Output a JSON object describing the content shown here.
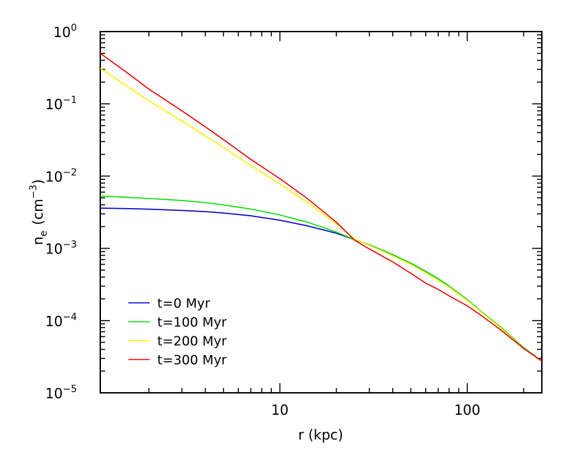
{
  "chart_data": {
    "type": "line",
    "xlabel": "r (kpc)",
    "ylabel_main": "n",
    "ylabel_sub": "e",
    "ylabel_unit": "(cm",
    "ylabel_exp": "−3",
    "ylabel_close": ")",
    "x_scale": "log",
    "y_scale": "log",
    "xlim": [
      1.1,
      250
    ],
    "ylim": [
      1e-05,
      1.0
    ],
    "grid": false,
    "legend_position": "bottom-left",
    "x_ticks": [
      {
        "value": 10,
        "label": "10"
      },
      {
        "value": 100,
        "label": "100"
      }
    ],
    "y_ticks": [
      {
        "value": 1,
        "base": "10",
        "exp": "0"
      },
      {
        "value": 0.1,
        "base": "10",
        "exp": "−1"
      },
      {
        "value": 0.01,
        "base": "10",
        "exp": "−2"
      },
      {
        "value": 0.001,
        "base": "10",
        "exp": "−3"
      },
      {
        "value": 0.0001,
        "base": "10",
        "exp": "−4"
      },
      {
        "value": 1e-05,
        "base": "10",
        "exp": "−5"
      }
    ],
    "series": [
      {
        "name": "t=0 Myr",
        "color": "#0000cc",
        "points": [
          [
            1.1,
            0.0036
          ],
          [
            1.5,
            0.00355
          ],
          [
            2,
            0.00348
          ],
          [
            3,
            0.00335
          ],
          [
            4,
            0.00322
          ],
          [
            5,
            0.00308
          ],
          [
            7,
            0.00282
          ],
          [
            10,
            0.00245
          ],
          [
            14,
            0.00205
          ],
          [
            20,
            0.00162
          ],
          [
            25,
            0.00132
          ],
          [
            30,
            0.00112
          ],
          [
            40,
            0.00082
          ],
          [
            50,
            0.00062
          ],
          [
            60,
            0.00048
          ],
          [
            70,
            0.00038
          ],
          [
            80,
            0.0003
          ],
          [
            100,
            0.000195
          ],
          [
            120,
            0.00013
          ],
          [
            150,
            8.2e-05
          ],
          [
            200,
            4.2e-05
          ],
          [
            250,
            2.75e-05
          ]
        ]
      },
      {
        "name": "t=100 Myr",
        "color": "#00dd00",
        "points": [
          [
            1.1,
            0.0053
          ],
          [
            1.5,
            0.0051
          ],
          [
            2,
            0.0049
          ],
          [
            3,
            0.0046
          ],
          [
            4,
            0.0043
          ],
          [
            5,
            0.004
          ],
          [
            7,
            0.0035
          ],
          [
            10,
            0.0029
          ],
          [
            14,
            0.0023
          ],
          [
            20,
            0.00168
          ],
          [
            25,
            0.00132
          ],
          [
            30,
            0.00112
          ],
          [
            40,
            0.00082
          ],
          [
            50,
            0.00062
          ],
          [
            60,
            0.00048
          ],
          [
            70,
            0.00038
          ],
          [
            80,
            0.0003
          ],
          [
            100,
            0.000195
          ],
          [
            120,
            0.00013
          ],
          [
            150,
            8.2e-05
          ],
          [
            200,
            4.2e-05
          ],
          [
            250,
            2.75e-05
          ]
        ]
      },
      {
        "name": "t=200 Myr",
        "color": "#ffee00",
        "points": [
          [
            1.1,
            0.31
          ],
          [
            1.5,
            0.18
          ],
          [
            2,
            0.11
          ],
          [
            3,
            0.058
          ],
          [
            4,
            0.036
          ],
          [
            5,
            0.025
          ],
          [
            7,
            0.014
          ],
          [
            10,
            0.0078
          ],
          [
            14,
            0.0043
          ],
          [
            20,
            0.0022
          ],
          [
            25,
            0.00135
          ],
          [
            30,
            0.0011
          ],
          [
            40,
            0.00079
          ],
          [
            50,
            0.0006
          ],
          [
            60,
            0.00046
          ],
          [
            70,
            0.00036
          ],
          [
            80,
            0.00029
          ],
          [
            100,
            0.00019
          ],
          [
            120,
            0.000128
          ],
          [
            150,
            8e-05
          ],
          [
            200,
            4.1e-05
          ],
          [
            250,
            2.75e-05
          ]
        ]
      },
      {
        "name": "t=300 Myr",
        "color": "#ee0000",
        "points": [
          [
            1.1,
            0.5
          ],
          [
            1.5,
            0.28
          ],
          [
            2,
            0.16
          ],
          [
            3,
            0.08
          ],
          [
            4,
            0.048
          ],
          [
            5,
            0.032
          ],
          [
            7,
            0.017
          ],
          [
            10,
            0.0092
          ],
          [
            14,
            0.0049
          ],
          [
            20,
            0.0023
          ],
          [
            25,
            0.0013
          ],
          [
            30,
            0.00098
          ],
          [
            40,
            0.00065
          ],
          [
            50,
            0.00045
          ],
          [
            60,
            0.00033
          ],
          [
            70,
            0.00027
          ],
          [
            80,
            0.00022
          ],
          [
            100,
            0.00016
          ],
          [
            120,
            0.000115
          ],
          [
            150,
            7.5e-05
          ],
          [
            200,
            4.1e-05
          ],
          [
            250,
            2.75e-05
          ]
        ]
      }
    ]
  }
}
